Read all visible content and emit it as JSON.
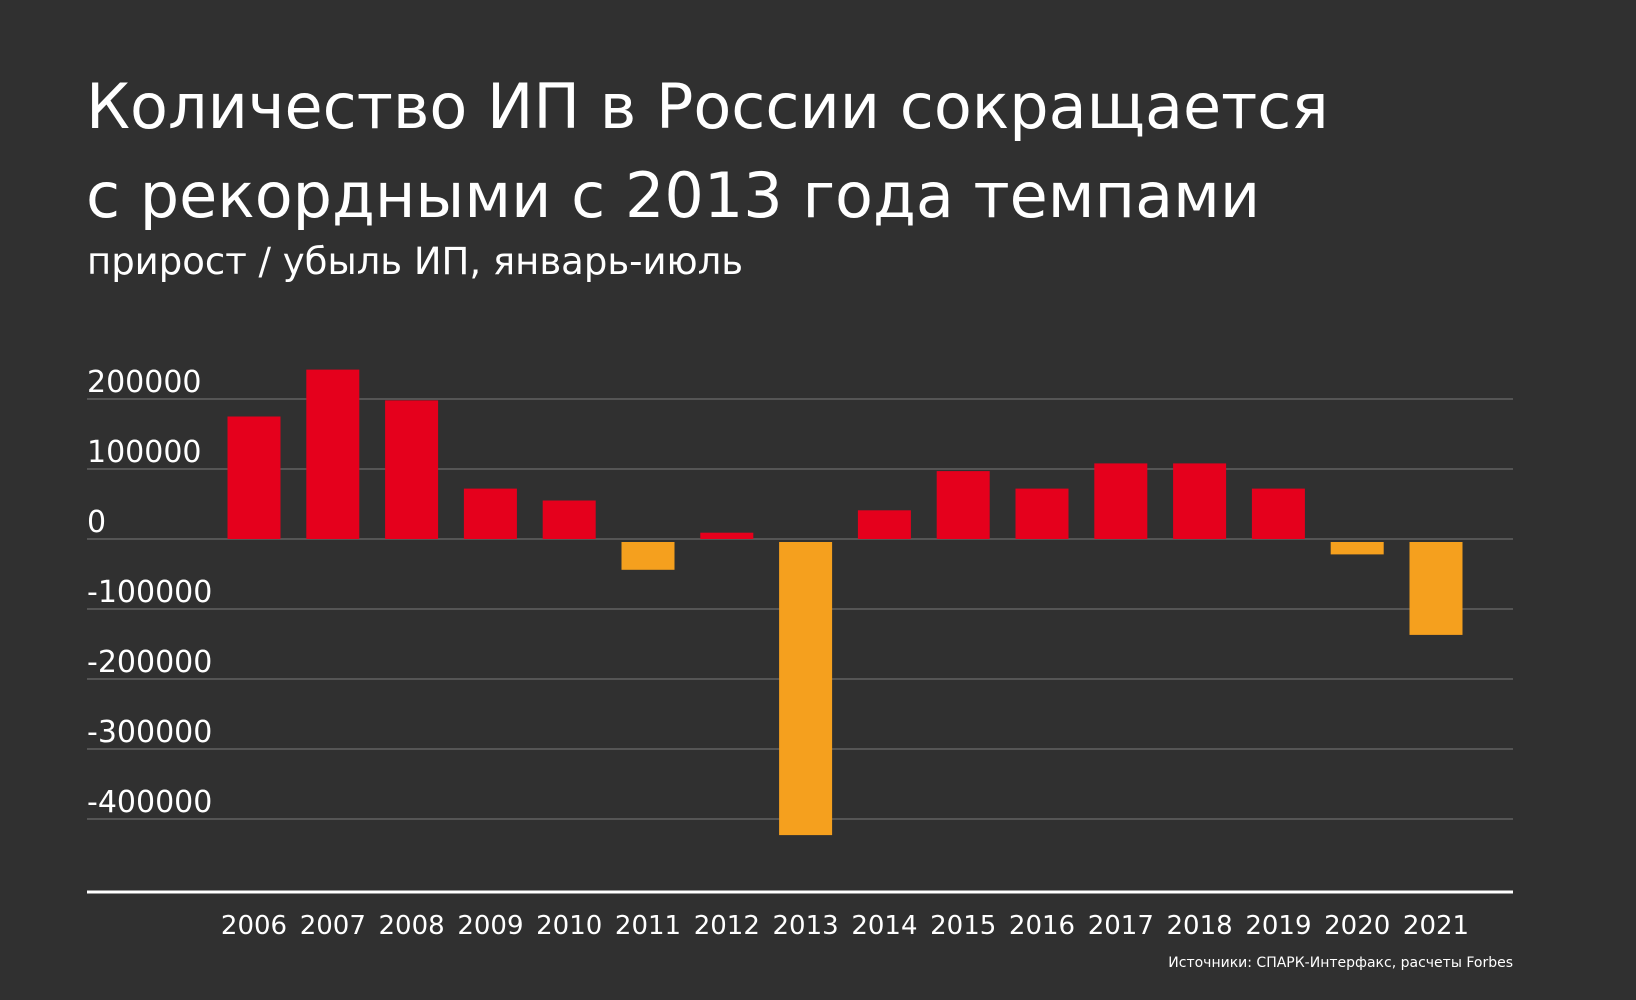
{
  "title_line1": "Количество ИП в России сокращается",
  "title_line2": "с рекордными с 2013 года темпами",
  "subtitle": "прирост / убыль ИП, январь-июль",
  "source": "Источники: СПАРК-Интерфакс, расчеты Forbes",
  "colors": {
    "background": "#303030",
    "positive": "#e5001c",
    "negative": "#f5a01e",
    "grid": "#555555",
    "text": "#ffffff"
  },
  "chart_data": {
    "type": "bar",
    "categories": [
      "2006",
      "2007",
      "2008",
      "2009",
      "2010",
      "2011",
      "2012",
      "2013",
      "2014",
      "2015",
      "2016",
      "2017",
      "2018",
      "2019",
      "2020",
      "2021"
    ],
    "values": [
      175000,
      242000,
      198000,
      72000,
      55000,
      -44000,
      9000,
      -423000,
      41000,
      97000,
      72000,
      108000,
      108000,
      72000,
      -22000,
      -137000
    ],
    "ylim": [
      -500000,
      200000
    ],
    "yticks": [
      200000,
      100000,
      0,
      -100000,
      -200000,
      -300000,
      -400000
    ],
    "ytick_labels": [
      "200000",
      "100000",
      "0",
      "-100000",
      "-200000",
      "-300000",
      "-400000"
    ],
    "xlabel": "",
    "ylabel": "",
    "grid": true,
    "legend": "none"
  }
}
